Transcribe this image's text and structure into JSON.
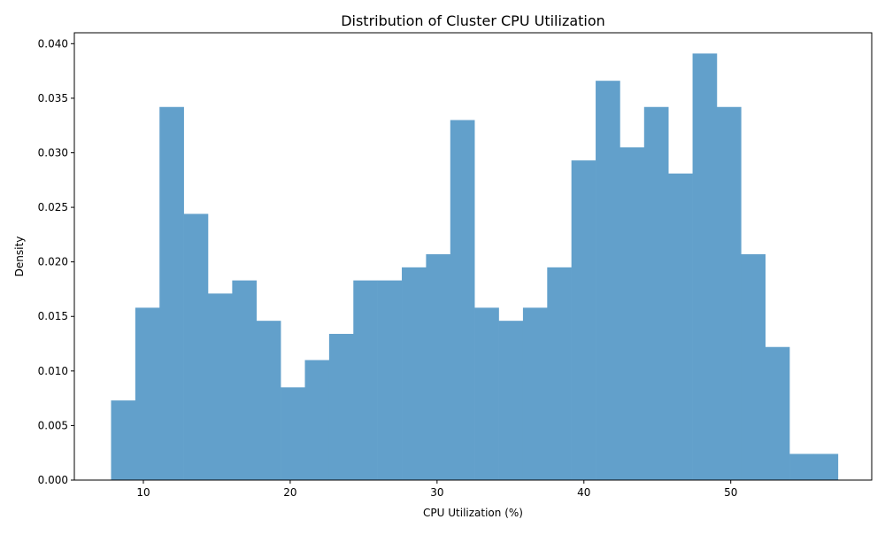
{
  "chart_data": {
    "type": "bar",
    "subtype": "histogram",
    "title": "Distribution of Cluster CPU Utilization",
    "xlabel": "CPU Utilization (%)",
    "ylabel": "Density",
    "xlim": [
      5.3,
      59.6
    ],
    "ylim": [
      0,
      0.041
    ],
    "x_ticks": [
      10,
      20,
      30,
      40,
      50
    ],
    "x_tick_labels": [
      "10",
      "20",
      "30",
      "40",
      "50"
    ],
    "y_ticks": [
      0.0,
      0.005,
      0.01,
      0.015,
      0.02,
      0.025,
      0.03,
      0.035,
      0.04
    ],
    "y_tick_labels": [
      "0.000",
      "0.005",
      "0.010",
      "0.015",
      "0.020",
      "0.025",
      "0.030",
      "0.035",
      "0.040"
    ],
    "bin_edges": [
      7.8,
      9.45,
      11.1,
      12.75,
      14.4,
      16.05,
      17.7,
      19.35,
      21.0,
      22.65,
      24.3,
      25.95,
      27.6,
      29.25,
      30.9,
      32.55,
      34.2,
      35.85,
      37.5,
      39.15,
      40.8,
      42.45,
      44.1,
      45.75,
      47.4,
      49.05,
      50.7,
      52.35,
      54.0,
      55.65,
      57.3
    ],
    "values": [
      0.0073,
      0.0158,
      0.0342,
      0.0244,
      0.0171,
      0.0183,
      0.0146,
      0.0085,
      0.011,
      0.0134,
      0.0183,
      0.0183,
      0.0195,
      0.0207,
      0.033,
      0.0158,
      0.0146,
      0.0158,
      0.0195,
      0.0293,
      0.0366,
      0.0305,
      0.0342,
      0.0281,
      0.0391,
      0.0342,
      0.0207,
      0.0122,
      0.0024,
      0.0024
    ],
    "bar_color": "#62a0cb",
    "grid": false,
    "legend": "none"
  }
}
